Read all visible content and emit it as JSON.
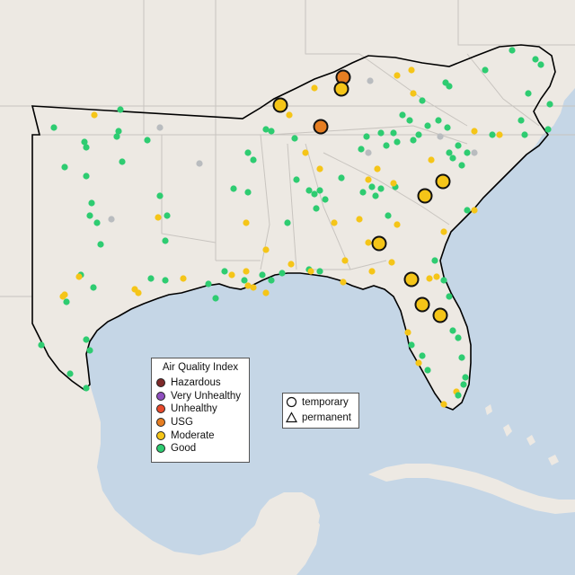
{
  "legend": {
    "title": "Air Quality Index",
    "categories": [
      {
        "label": "Hazardous",
        "color": "#7e2a2a"
      },
      {
        "label": "Very Unhealthy",
        "color": "#8f4fbf"
      },
      {
        "label": "Unhealthy",
        "color": "#e84a2c"
      },
      {
        "label": "USG",
        "color": "#e67e22"
      },
      {
        "label": "Moderate",
        "color": "#f5c518"
      },
      {
        "label": "Good",
        "color": "#2ecc71"
      }
    ]
  },
  "monitor_legend": {
    "temporary": "temporary",
    "permanent": "permanent"
  },
  "colors": {
    "water": "#c5d6e6",
    "land": "#ede9e3",
    "border": "#c8c4bf",
    "region_outline": "#000000",
    "no_data": "#b9bcbf"
  }
}
